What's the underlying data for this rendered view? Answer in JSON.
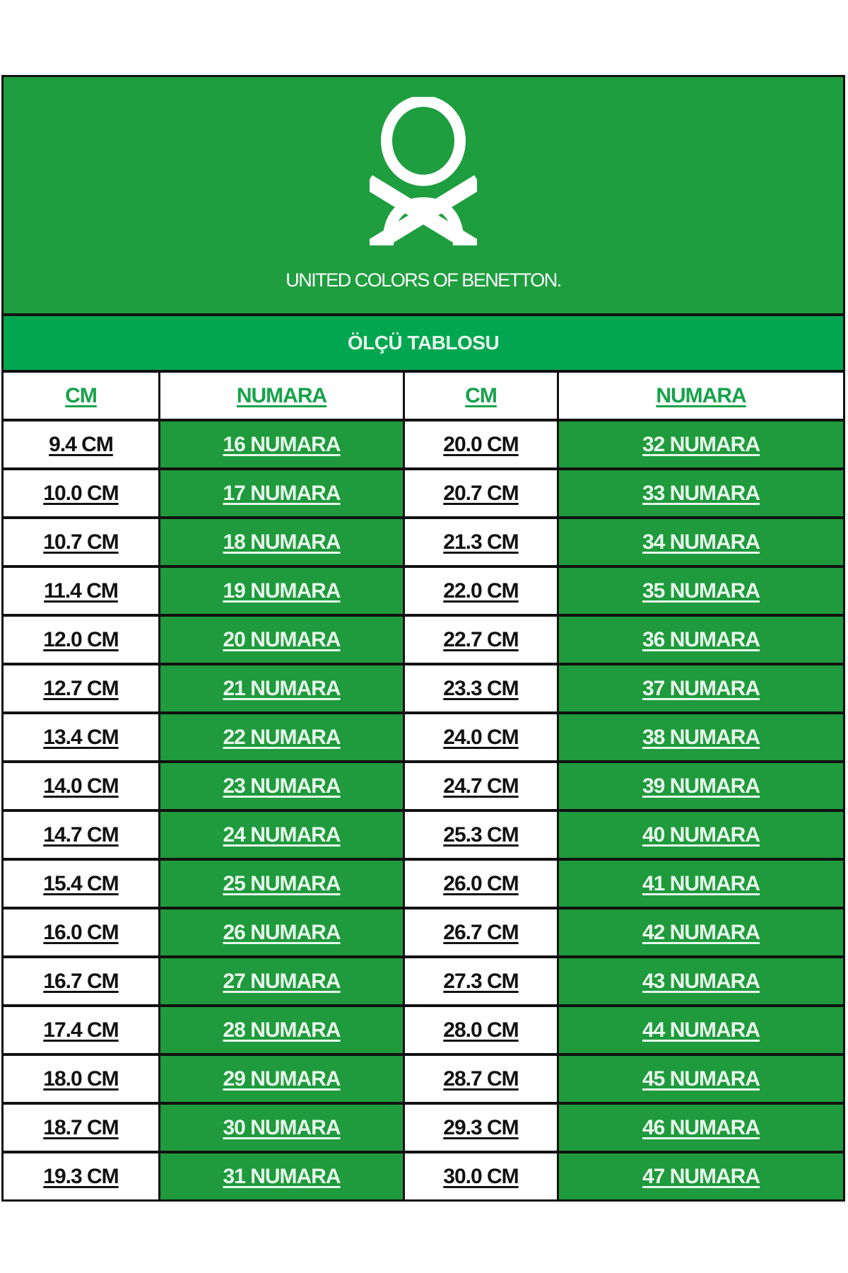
{
  "brand": {
    "name": "UNITED COLORS OF BENETTON.",
    "logo_icon": "benetton-knot-logo"
  },
  "title": "ÖLÇÜ TABLOSU",
  "colors": {
    "logo_band": "#1f9e3f",
    "title_band": "#00a650",
    "numara_cell": "#1f9a3c",
    "header_text": "#17a34a"
  },
  "columns": [
    "CM",
    "NUMARA",
    "CM",
    "NUMARA"
  ],
  "rows": [
    [
      "9.4 CM",
      "16 NUMARA",
      "20.0 CM",
      "32 NUMARA"
    ],
    [
      "10.0 CM",
      "17 NUMARA",
      "20.7 CM",
      "33 NUMARA"
    ],
    [
      "10.7 CM",
      "18 NUMARA",
      "21.3 CM",
      "34 NUMARA"
    ],
    [
      "11.4 CM",
      "19 NUMARA",
      "22.0 CM",
      "35 NUMARA"
    ],
    [
      "12.0 CM",
      "20 NUMARA",
      "22.7 CM",
      "36 NUMARA"
    ],
    [
      "12.7 CM",
      "21 NUMARA",
      "23.3 CM",
      "37 NUMARA"
    ],
    [
      "13.4 CM",
      "22 NUMARA",
      "24.0 CM",
      "38 NUMARA"
    ],
    [
      "14.0 CM",
      "23 NUMARA",
      "24.7 CM",
      "39 NUMARA"
    ],
    [
      "14.7 CM",
      "24 NUMARA",
      "25.3 CM",
      "40 NUMARA"
    ],
    [
      "15.4 CM",
      "25 NUMARA",
      "26.0 CM",
      "41 NUMARA"
    ],
    [
      "16.0 CM",
      "26 NUMARA",
      "26.7 CM",
      "42 NUMARA"
    ],
    [
      "16.7 CM",
      "27 NUMARA",
      "27.3 CM",
      "43 NUMARA"
    ],
    [
      "17.4 CM",
      "28 NUMARA",
      "28.0 CM",
      "44 NUMARA"
    ],
    [
      "18.0 CM",
      "29 NUMARA",
      "28.7 CM",
      "45 NUMARA"
    ],
    [
      "18.7 CM",
      "30 NUMARA",
      "29.3 CM",
      "46 NUMARA"
    ],
    [
      "19.3 CM",
      "31 NUMARA",
      "30.0 CM",
      "47 NUMARA"
    ]
  ]
}
